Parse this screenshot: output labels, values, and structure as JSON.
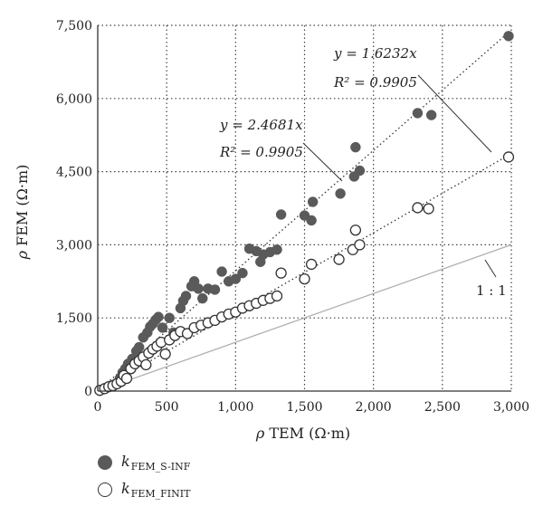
{
  "chart_data": {
    "type": "scatter",
    "xlabel_symbol": "ρ",
    "xlabel_text": " TEM (Ω·m)",
    "ylabel_symbol": "ρ",
    "ylabel_text": " FEM (Ω·m)",
    "xlim": [
      0,
      3000
    ],
    "ylim": [
      0,
      7500
    ],
    "xticks": [
      "0",
      "500",
      "1,000",
      "1,500",
      "2,000",
      "2,500",
      "3,000"
    ],
    "yticks": [
      "0",
      "1,500",
      "3,000",
      "4,500",
      "6,000",
      "7,500"
    ],
    "grid": true,
    "series": [
      {
        "name_main": "k",
        "name_sub": "FEM_S-INF",
        "marker": "filled",
        "color": "#5a5a5a",
        "points": [
          [
            20,
            20
          ],
          [
            60,
            60
          ],
          [
            100,
            110
          ],
          [
            130,
            150
          ],
          [
            160,
            260
          ],
          [
            180,
            380
          ],
          [
            200,
            460
          ],
          [
            220,
            560
          ],
          [
            250,
            660
          ],
          [
            280,
            820
          ],
          [
            300,
            900
          ],
          [
            330,
            1100
          ],
          [
            360,
            1200
          ],
          [
            380,
            1320
          ],
          [
            400,
            1380
          ],
          [
            420,
            1460
          ],
          [
            440,
            1520
          ],
          [
            470,
            1300
          ],
          [
            520,
            1500
          ],
          [
            550,
            1200
          ],
          [
            600,
            1700
          ],
          [
            620,
            1850
          ],
          [
            640,
            1950
          ],
          [
            680,
            2150
          ],
          [
            700,
            2250
          ],
          [
            730,
            2100
          ],
          [
            760,
            1900
          ],
          [
            800,
            2100
          ],
          [
            850,
            2080
          ],
          [
            900,
            2450
          ],
          [
            950,
            2250
          ],
          [
            1000,
            2300
          ],
          [
            1050,
            2420
          ],
          [
            1100,
            2920
          ],
          [
            1150,
            2870
          ],
          [
            1180,
            2650
          ],
          [
            1200,
            2800
          ],
          [
            1250,
            2850
          ],
          [
            1300,
            2900
          ],
          [
            1330,
            3620
          ],
          [
            1500,
            3600
          ],
          [
            1550,
            3500
          ],
          [
            1560,
            3880
          ],
          [
            1760,
            4050
          ],
          [
            1860,
            4400
          ],
          [
            1870,
            5000
          ],
          [
            1900,
            4520
          ],
          [
            2320,
            5700
          ],
          [
            2420,
            5660
          ],
          [
            2980,
            7280
          ]
        ],
        "fit_label": "y = 2.4681x",
        "r2_label": "R² = 0.9905"
      },
      {
        "name_main": "k",
        "name_sub": "FEM_FINIT",
        "marker": "hollow",
        "color": "#ffffff",
        "points": [
          [
            15,
            15
          ],
          [
            50,
            50
          ],
          [
            80,
            90
          ],
          [
            110,
            110
          ],
          [
            140,
            150
          ],
          [
            170,
            200
          ],
          [
            190,
            320
          ],
          [
            210,
            260
          ],
          [
            240,
            460
          ],
          [
            270,
            560
          ],
          [
            300,
            620
          ],
          [
            330,
            700
          ],
          [
            350,
            540
          ],
          [
            370,
            780
          ],
          [
            400,
            860
          ],
          [
            430,
            920
          ],
          [
            460,
            1000
          ],
          [
            490,
            760
          ],
          [
            520,
            1050
          ],
          [
            560,
            1140
          ],
          [
            600,
            1220
          ],
          [
            650,
            1180
          ],
          [
            700,
            1300
          ],
          [
            750,
            1350
          ],
          [
            800,
            1400
          ],
          [
            850,
            1450
          ],
          [
            900,
            1520
          ],
          [
            950,
            1580
          ],
          [
            1000,
            1620
          ],
          [
            1050,
            1700
          ],
          [
            1100,
            1750
          ],
          [
            1150,
            1800
          ],
          [
            1200,
            1860
          ],
          [
            1250,
            1900
          ],
          [
            1300,
            1950
          ],
          [
            1330,
            2420
          ],
          [
            1500,
            2300
          ],
          [
            1550,
            2600
          ],
          [
            1750,
            2700
          ],
          [
            1850,
            2900
          ],
          [
            1870,
            3300
          ],
          [
            1900,
            3000
          ],
          [
            2320,
            3760
          ],
          [
            2400,
            3740
          ],
          [
            2980,
            4800
          ]
        ],
        "fit_label": "y = 1.6232x",
        "r2_label": "R² = 0.9905"
      }
    ],
    "trendlines": [
      {
        "slope": 2.4681,
        "x_end": 2980
      },
      {
        "slope": 1.6232,
        "x_end": 2980
      }
    ],
    "reference_line": {
      "slope": 1,
      "label": "1 : 1"
    }
  },
  "colors": {
    "grid": "#444444",
    "axis": "#333333",
    "ref_line": "#b0b0b0",
    "filled_marker": "#5a5a5a",
    "hollow_stroke": "#333333"
  }
}
